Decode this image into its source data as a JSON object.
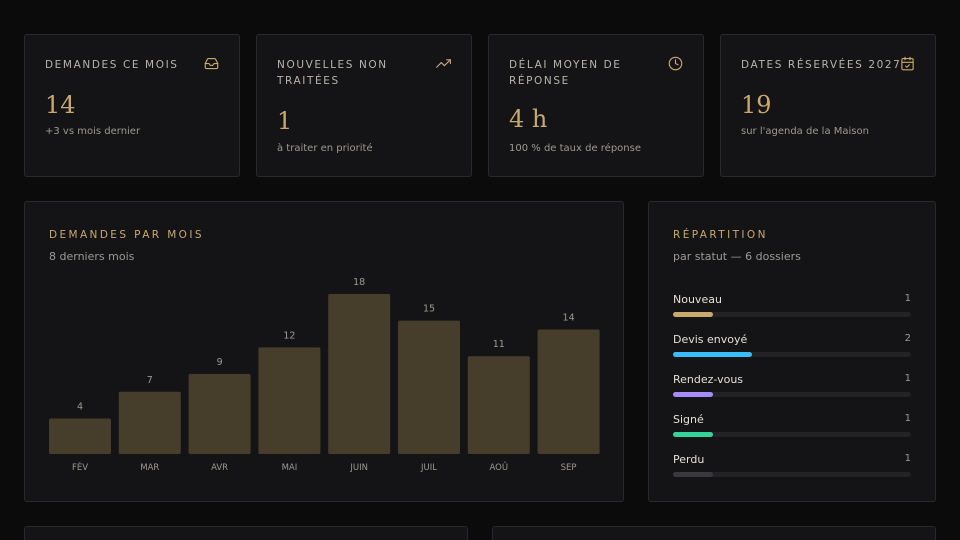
{
  "kpis": [
    {
      "label": "Demandes ce mois",
      "value": "14",
      "sub": "+3 vs mois dernier",
      "icon": "inbox-icon"
    },
    {
      "label": "Nouvelles non traitées",
      "value": "1",
      "sub": "à traiter en priorité",
      "icon": "trending-up-icon"
    },
    {
      "label": "Délai moyen de réponse",
      "value": "4 h",
      "sub": "100 % de taux de réponse",
      "icon": "clock-icon"
    },
    {
      "label": "Dates réservées 2027",
      "value": "19",
      "sub": "sur l'agenda de la Maison",
      "icon": "calendar-check-icon"
    }
  ],
  "monthly": {
    "title": "Demandes par mois",
    "subtitle": "8 derniers mois"
  },
  "chart_data": {
    "type": "bar",
    "categories": [
      "FÉV",
      "MAR",
      "AVR",
      "MAI",
      "JUIN",
      "JUIL",
      "AOÛ",
      "SEP"
    ],
    "values": [
      4,
      7,
      9,
      12,
      18,
      15,
      11,
      14
    ],
    "title": "Demandes par mois",
    "subtitle": "8 derniers mois",
    "xlabel": "",
    "ylabel": "",
    "ylim": [
      0,
      18
    ],
    "grid": false,
    "bar_color": "#463d2b"
  },
  "repartition": {
    "title": "Répartition",
    "subtitle": "par statut — 6 dossiers",
    "total": 6,
    "items": [
      {
        "name": "Nouveau",
        "count": "1",
        "value": 1,
        "color": "#c9a96e"
      },
      {
        "name": "Devis envoyé",
        "count": "2",
        "value": 2,
        "color": "#38bdf8"
      },
      {
        "name": "Rendez-vous",
        "count": "1",
        "value": 1,
        "color": "#a78bfa"
      },
      {
        "name": "Signé",
        "count": "1",
        "value": 1,
        "color": "#34d399"
      },
      {
        "name": "Perdu",
        "count": "1",
        "value": 1,
        "color": "#3a3a3e"
      }
    ]
  },
  "colors": {
    "accent": "#c9a96e",
    "background": "#0b0b0c",
    "card": "#141416",
    "border": "#2a2a2d"
  }
}
